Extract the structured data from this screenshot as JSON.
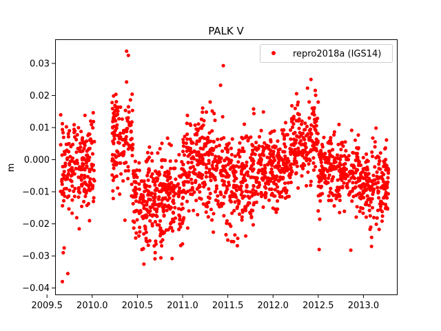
{
  "chart_data": {
    "type": "scatter",
    "title": "PALK V",
    "xlabel": "",
    "ylabel": "m",
    "xlim": [
      2009.59,
      2013.37
    ],
    "ylim": [
      -0.042,
      0.0375
    ],
    "grid": false,
    "legend_position": "top-right",
    "x_ticks": [
      2009.5,
      2010.0,
      2010.5,
      2011.0,
      2011.5,
      2012.0,
      2012.5,
      2013.0
    ],
    "x_tick_labels": [
      "2009.5",
      "2010.0",
      "2010.5",
      "2011.0",
      "2011.5",
      "2012.0",
      "2012.5",
      "2013.0"
    ],
    "y_ticks": [
      -0.04,
      -0.03,
      -0.02,
      -0.01,
      0.0,
      0.01,
      0.02,
      0.03
    ],
    "y_tick_labels": [
      "−0.04",
      "−0.03",
      "−0.02",
      "−0.01",
      "0.000",
      "0.01",
      "0.02",
      "0.03"
    ],
    "series": [
      {
        "name": "repro2018a (IGS14)",
        "color": "#ff0000",
        "marker": "circle",
        "segments": [
          {
            "x_start": 2009.65,
            "x_end": 2010.03,
            "center": -0.003,
            "spread": 0.007,
            "count": 200
          },
          {
            "x_start": 2010.22,
            "x_end": 2010.45,
            "center": 0.005,
            "spread": 0.008,
            "count": 130
          },
          {
            "x_start": 2010.45,
            "x_end": 2011.0,
            "center": -0.012,
            "spread": 0.007,
            "count": 330
          },
          {
            "x_start": 2011.0,
            "x_end": 2011.45,
            "center": -0.002,
            "spread": 0.008,
            "count": 260
          },
          {
            "x_start": 2011.45,
            "x_end": 2011.8,
            "center": -0.006,
            "spread": 0.008,
            "count": 200
          },
          {
            "x_start": 2011.8,
            "x_end": 2012.2,
            "center": -0.003,
            "spread": 0.006,
            "count": 230
          },
          {
            "x_start": 2012.2,
            "x_end": 2012.5,
            "center": 0.006,
            "spread": 0.006,
            "count": 170
          },
          {
            "x_start": 2012.5,
            "x_end": 2012.95,
            "center": -0.004,
            "spread": 0.006,
            "count": 250
          },
          {
            "x_start": 2012.95,
            "x_end": 2013.28,
            "center": -0.009,
            "spread": 0.006,
            "count": 190
          }
        ],
        "highlight_points": [
          [
            2009.67,
            -0.038
          ],
          [
            2009.73,
            -0.0355
          ],
          [
            2009.68,
            -0.029
          ],
          [
            2009.69,
            -0.0275
          ],
          [
            2009.67,
            0.0112
          ],
          [
            2009.92,
            0.0138
          ],
          [
            2009.97,
            -0.019
          ],
          [
            2010.38,
            0.0338
          ],
          [
            2010.4,
            0.0325
          ],
          [
            2010.38,
            0.0242
          ],
          [
            2010.22,
            0.0178
          ],
          [
            2010.76,
            -0.0306
          ],
          [
            2011.45,
            0.0293
          ],
          [
            2011.42,
            0.0232
          ],
          [
            2012.42,
            0.025
          ],
          [
            2012.4,
            0.018
          ],
          [
            2012.86,
            -0.0282
          ],
          [
            2013.09,
            -0.0242
          ],
          [
            2012.51,
            -0.028
          ],
          [
            2011.48,
            -0.0234
          ],
          [
            2010.55,
            -0.028
          ]
        ]
      }
    ]
  }
}
